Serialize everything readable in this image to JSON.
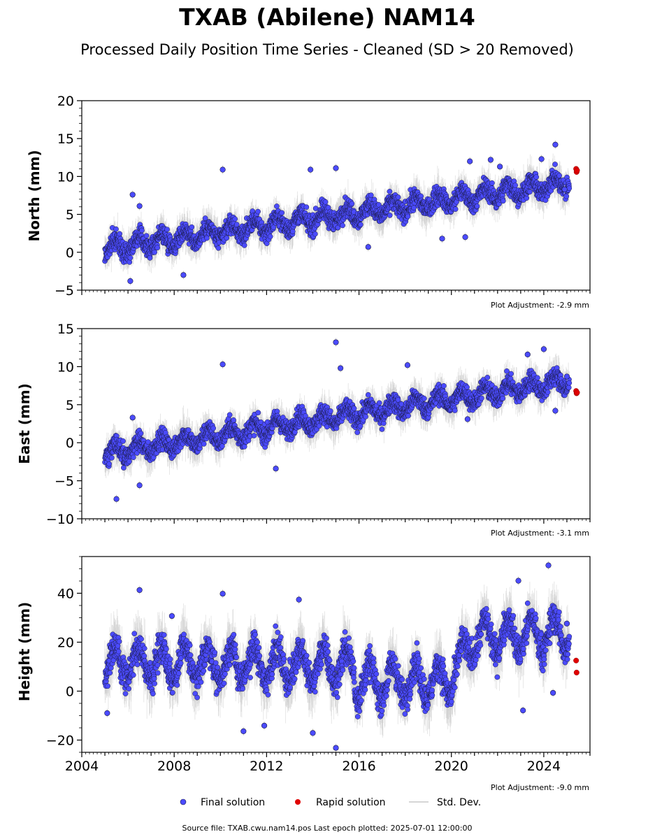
{
  "figure": {
    "title": "TXAB (Abilene) NAM14",
    "subtitle": "Processed Daily Position Time Series - Cleaned (SD > 20 Removed)",
    "footer": "Source file: TXAB.cwu.nam14.pos  Last epoch plotted: 2025-07-01 12:00:00"
  },
  "legend": {
    "final_label": "Final solution",
    "rapid_label": "Rapid solution",
    "std_label": "Std. Dev."
  },
  "colors": {
    "final": "#4b4bff",
    "final_edge": "#1a1a40",
    "rapid": "#e00000",
    "std": "#c8c8c8"
  },
  "chart_data": [
    {
      "type": "scatter",
      "ylabel": "North (mm)",
      "ylim": [
        -5,
        20
      ],
      "yticks": [
        "−5",
        "0",
        "5",
        "10",
        "15",
        "20"
      ],
      "xlim": [
        2004.0,
        2026.0
      ],
      "xticks": [],
      "adjustment": "Plot Adjustment: -2.9 mm",
      "trend": {
        "start": 0.5,
        "end": 9.2
      },
      "series": [
        {
          "name": "Final solution",
          "x_range": [
            2005.0,
            2025.1
          ],
          "y_mean_start": 0.5,
          "y_mean_end": 9.2
        },
        {
          "name": "Rapid solution",
          "x": [
            2025.4,
            2025.42,
            2025.44
          ],
          "y": [
            11.0,
            10.6,
            10.8
          ]
        }
      ],
      "outliers": [
        {
          "x": 2006.2,
          "y": 7.6
        },
        {
          "x": 2006.1,
          "y": -3.8
        },
        {
          "x": 2006.5,
          "y": 6.1
        },
        {
          "x": 2008.4,
          "y": -3.0
        },
        {
          "x": 2010.1,
          "y": 10.9
        },
        {
          "x": 2013.9,
          "y": 10.9
        },
        {
          "x": 2015.0,
          "y": 11.1
        },
        {
          "x": 2016.4,
          "y": 0.7
        },
        {
          "x": 2019.6,
          "y": 1.8
        },
        {
          "x": 2020.6,
          "y": 2.0
        },
        {
          "x": 2020.8,
          "y": 12.0
        },
        {
          "x": 2021.7,
          "y": 12.2
        },
        {
          "x": 2022.1,
          "y": 11.3
        },
        {
          "x": 2023.9,
          "y": 12.3
        },
        {
          "x": 2024.5,
          "y": 14.2
        },
        {
          "x": 2024.9,
          "y": 8.3
        }
      ]
    },
    {
      "type": "scatter",
      "ylabel": "East (mm)",
      "ylim": [
        -10,
        15
      ],
      "yticks": [
        "−10",
        "−5",
        "0",
        "5",
        "10",
        "15"
      ],
      "xlim": [
        2004.0,
        2026.0
      ],
      "xticks": [],
      "adjustment": "Plot Adjustment: -3.1 mm",
      "trend": {
        "start": -1.4,
        "end": 8.2
      },
      "series": [
        {
          "name": "Final solution",
          "x_range": [
            2005.0,
            2025.1
          ],
          "y_mean_start": -1.4,
          "y_mean_end": 8.2
        },
        {
          "name": "Rapid solution",
          "x": [
            2025.4,
            2025.42,
            2025.44
          ],
          "y": [
            6.8,
            6.5,
            6.6
          ]
        }
      ],
      "outliers": [
        {
          "x": 2005.5,
          "y": -7.4
        },
        {
          "x": 2006.2,
          "y": 3.3
        },
        {
          "x": 2006.5,
          "y": -5.6
        },
        {
          "x": 2010.1,
          "y": 10.3
        },
        {
          "x": 2012.4,
          "y": -3.4
        },
        {
          "x": 2015.0,
          "y": 13.2
        },
        {
          "x": 2015.2,
          "y": 9.8
        },
        {
          "x": 2018.1,
          "y": 10.2
        },
        {
          "x": 2020.7,
          "y": 3.1
        },
        {
          "x": 2023.3,
          "y": 11.6
        },
        {
          "x": 2024.0,
          "y": 12.3
        },
        {
          "x": 2024.5,
          "y": 4.2
        },
        {
          "x": 2025.0,
          "y": 8.7
        }
      ]
    },
    {
      "type": "scatter",
      "ylabel": "Height (mm)",
      "ylim": [
        -25,
        55
      ],
      "yticks": [
        "−20",
        "0",
        "20",
        "40"
      ],
      "ytick_values": [
        -20,
        0,
        20,
        40
      ],
      "xlim": [
        2004.0,
        2026.0
      ],
      "xticks": [
        "2004",
        "2008",
        "2012",
        "2016",
        "2020",
        "2024"
      ],
      "xtick_values": [
        2004,
        2008,
        2012,
        2016,
        2020,
        2024
      ],
      "adjustment": "Plot Adjustment: -9.0 mm",
      "series": [
        {
          "name": "Final solution",
          "x_range": [
            2005.0,
            2025.1
          ]
        },
        {
          "name": "Rapid solution",
          "x": [
            2025.4,
            2025.42
          ],
          "y": [
            12.5,
            7.6
          ]
        }
      ],
      "outliers": [
        {
          "x": 2005.1,
          "y": -9.0
        },
        {
          "x": 2006.5,
          "y": 41.3
        },
        {
          "x": 2007.9,
          "y": 30.7
        },
        {
          "x": 2010.1,
          "y": 39.8
        },
        {
          "x": 2011.0,
          "y": -16.4
        },
        {
          "x": 2011.9,
          "y": -14.1
        },
        {
          "x": 2013.4,
          "y": 37.4
        },
        {
          "x": 2014.0,
          "y": -17.1
        },
        {
          "x": 2015.0,
          "y": -23.2
        },
        {
          "x": 2022.9,
          "y": 45.1
        },
        {
          "x": 2023.1,
          "y": -7.9
        },
        {
          "x": 2024.2,
          "y": 51.4
        },
        {
          "x": 2024.4,
          "y": -0.7
        },
        {
          "x": 2025.0,
          "y": 27.6
        }
      ]
    }
  ]
}
